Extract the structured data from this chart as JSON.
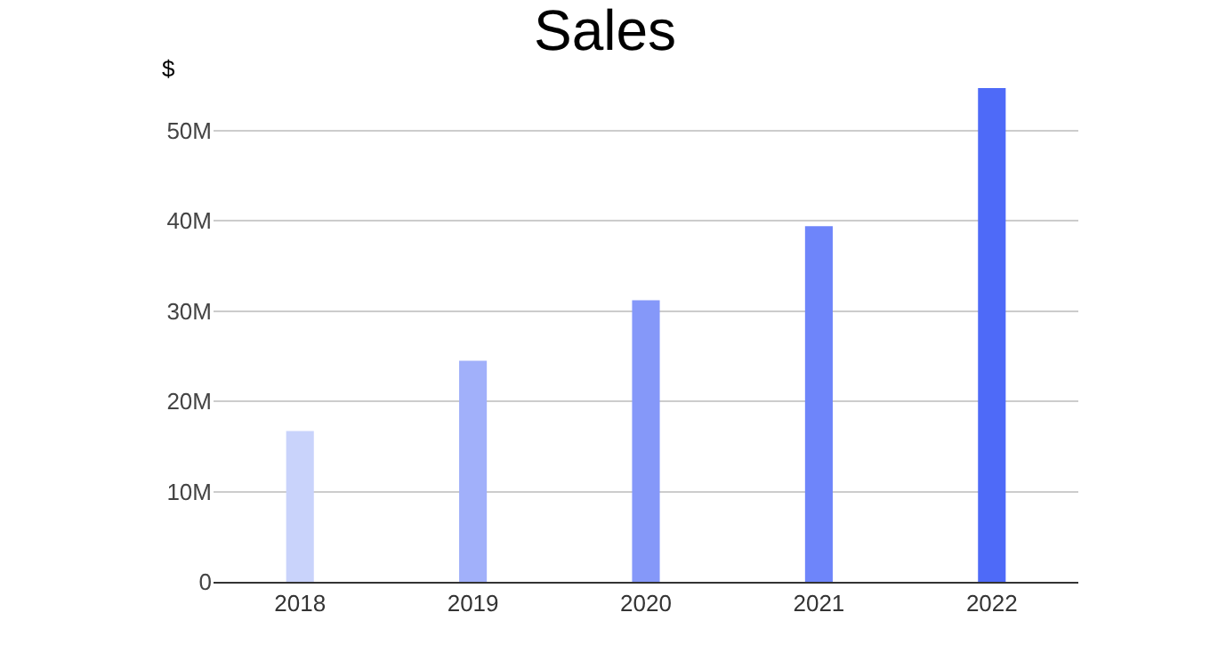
{
  "chart_data": {
    "type": "bar",
    "title": "Sales",
    "ylabel": "$",
    "categories": [
      "2018",
      "2019",
      "2020",
      "2021",
      "2022"
    ],
    "values": [
      16.7,
      24.5,
      31.2,
      39.4,
      54.7
    ],
    "colors": [
      "#c9d3fb",
      "#a1b0fa",
      "#8598f9",
      "#6e85fa",
      "#4e6af8"
    ],
    "ylim": [
      0,
      55
    ],
    "yticks": [
      {
        "value": 0,
        "label": "0"
      },
      {
        "value": 10,
        "label": "10M"
      },
      {
        "value": 20,
        "label": "20M"
      },
      {
        "value": 30,
        "label": "30M"
      },
      {
        "value": 40,
        "label": "40M"
      },
      {
        "value": 50,
        "label": "50M"
      }
    ],
    "grid": "y"
  }
}
